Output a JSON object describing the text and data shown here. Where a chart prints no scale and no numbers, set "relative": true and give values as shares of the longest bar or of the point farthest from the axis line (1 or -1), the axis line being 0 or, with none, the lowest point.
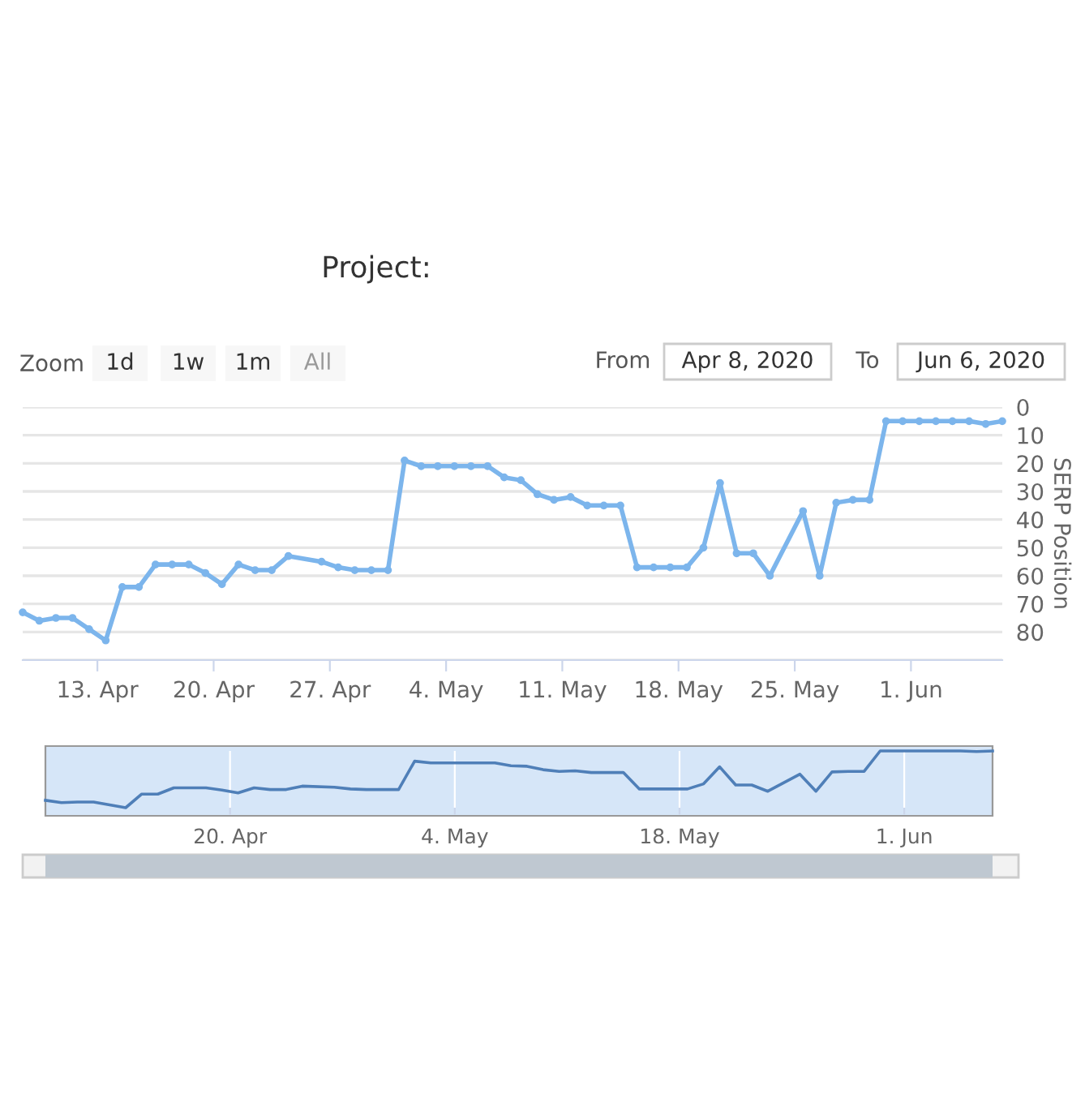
{
  "chart_data": [
    {
      "type": "line",
      "title": "Project:",
      "ylabel": "SERP Position",
      "annotations": [
        "Zoom",
        "1d",
        "1w",
        "1m",
        "All",
        "From",
        "Apr 8, 2020",
        "To",
        "Jun 6, 2020"
      ],
      "x": [
        "2020-04-08T12:00",
        "2020-04-09T12:00",
        "2020-04-10T12:00",
        "2020-04-11T12:00",
        "2020-04-12T12:00",
        "2020-04-13T12:00",
        "2020-04-14T12:00",
        "2020-04-15T12:00",
        "2020-04-16T12:00",
        "2020-04-17T12:00",
        "2020-04-18T12:00",
        "2020-04-19T12:00",
        "2020-04-20T12:00",
        "2020-04-21T12:00",
        "2020-04-22T12:00",
        "2020-04-23T12:00",
        "2020-04-24T12:00",
        "2020-04-26T12:00",
        "2020-04-27T12:00",
        "2020-04-28T12:00",
        "2020-04-29T12:00",
        "2020-04-30T12:00",
        "2020-05-01T12:00",
        "2020-05-02T12:00",
        "2020-05-03T12:00",
        "2020-05-04T12:00",
        "2020-05-05T12:00",
        "2020-05-06T12:00",
        "2020-05-07T12:00",
        "2020-05-08T12:00",
        "2020-05-09T12:00",
        "2020-05-10T12:00",
        "2020-05-11T12:00",
        "2020-05-12T12:00",
        "2020-05-13T12:00",
        "2020-05-14T12:00",
        "2020-05-15T12:00",
        "2020-05-16T12:00",
        "2020-05-17T12:00",
        "2020-05-18T12:00",
        "2020-05-19T12:00",
        "2020-05-20T12:00",
        "2020-05-21T12:00",
        "2020-05-22T12:00",
        "2020-05-23T12:00",
        "2020-05-25T12:00",
        "2020-05-26T12:00",
        "2020-05-27T12:00",
        "2020-05-28T12:00",
        "2020-05-29T12:00",
        "2020-05-30T12:00",
        "2020-05-31T12:00",
        "2020-06-01T12:00",
        "2020-06-02T12:00",
        "2020-06-03T12:00",
        "2020-06-04T12:00",
        "2020-06-05T12:00",
        "2020-06-06T12:00"
      ],
      "series": [
        {
          "color": "#7cb5ec",
          "values": [
            73,
            76,
            75,
            75,
            79,
            83,
            64,
            64,
            56,
            56,
            56,
            59,
            63,
            56,
            58,
            58,
            53,
            55,
            57,
            58,
            58,
            58,
            19,
            21,
            21,
            21,
            21,
            21,
            25,
            26,
            31,
            33,
            32,
            35,
            35,
            35,
            57,
            57,
            57,
            57,
            50,
            27,
            52,
            52,
            60,
            37,
            60,
            34,
            33,
            33,
            5,
            5,
            5,
            5,
            5,
            5,
            6,
            5
          ]
        }
      ],
      "xlim": [
        "2020-04-08T12:00",
        "2020-06-06T12:00"
      ],
      "xticks": [
        {
          "value": "2020-04-13",
          "label": "13. Apr"
        },
        {
          "value": "2020-04-20",
          "label": "20. Apr"
        },
        {
          "value": "2020-04-27",
          "label": "27. Apr"
        },
        {
          "value": "2020-05-04",
          "label": "4. May"
        },
        {
          "value": "2020-05-11",
          "label": "11. May"
        },
        {
          "value": "2020-05-18",
          "label": "18. May"
        },
        {
          "value": "2020-05-25",
          "label": "25. May"
        },
        {
          "value": "2020-06-01",
          "label": "1. Jun"
        }
      ],
      "ylim": [
        90,
        0
      ],
      "yticks": [
        0,
        10,
        20,
        30,
        40,
        50,
        60,
        70,
        80,
        {
          "value": 90,
          "label": null
        }
      ],
      "grid": "y",
      "marker": "circle",
      "line_style": "solid"
    },
    {
      "type": "line",
      "tick_labels": "x",
      "x": [
        "2020-04-08T12:00",
        "2020-04-09T12:00",
        "2020-04-10T12:00",
        "2020-04-11T12:00",
        "2020-04-12T12:00",
        "2020-04-13T12:00",
        "2020-04-14T12:00",
        "2020-04-15T12:00",
        "2020-04-16T12:00",
        "2020-04-17T12:00",
        "2020-04-18T12:00",
        "2020-04-19T12:00",
        "2020-04-20T12:00",
        "2020-04-21T12:00",
        "2020-04-22T12:00",
        "2020-04-23T12:00",
        "2020-04-24T12:00",
        "2020-04-26T12:00",
        "2020-04-27T12:00",
        "2020-04-28T12:00",
        "2020-04-29T12:00",
        "2020-04-30T12:00",
        "2020-05-01T12:00",
        "2020-05-02T12:00",
        "2020-05-03T12:00",
        "2020-05-04T12:00",
        "2020-05-05T12:00",
        "2020-05-06T12:00",
        "2020-05-07T12:00",
        "2020-05-08T12:00",
        "2020-05-09T12:00",
        "2020-05-10T12:00",
        "2020-05-11T12:00",
        "2020-05-12T12:00",
        "2020-05-13T12:00",
        "2020-05-14T12:00",
        "2020-05-15T12:00",
        "2020-05-16T12:00",
        "2020-05-17T12:00",
        "2020-05-18T12:00",
        "2020-05-19T12:00",
        "2020-05-20T12:00",
        "2020-05-21T12:00",
        "2020-05-22T12:00",
        "2020-05-23T12:00",
        "2020-05-25T12:00",
        "2020-05-26T12:00",
        "2020-05-27T12:00",
        "2020-05-28T12:00",
        "2020-05-29T12:00",
        "2020-05-30T12:00",
        "2020-05-31T12:00",
        "2020-06-01T12:00",
        "2020-06-02T12:00",
        "2020-06-03T12:00",
        "2020-06-04T12:00",
        "2020-06-05T12:00",
        "2020-06-06T12:00"
      ],
      "relative": true,
      "series": [
        {
          "color": "#4f7fb8",
          "values": [
            0.13,
            0.09,
            0.1,
            0.1,
            0.05,
            0,
            0.24,
            0.24,
            0.35,
            0.35,
            0.35,
            0.31,
            0.26,
            0.35,
            0.32,
            0.32,
            0.38,
            0.36,
            0.33,
            0.32,
            0.32,
            0.32,
            0.82,
            0.79,
            0.79,
            0.79,
            0.79,
            0.79,
            0.74,
            0.73,
            0.67,
            0.64,
            0.65,
            0.62,
            0.62,
            0.62,
            0.33,
            0.33,
            0.33,
            0.33,
            0.42,
            0.72,
            0.4,
            0.4,
            0.29,
            0.59,
            0.29,
            0.63,
            0.64,
            0.64,
            1,
            1,
            1,
            1,
            1,
            1,
            0.99,
            1
          ]
        }
      ],
      "xlim": [
        "2020-04-08T12:00",
        "2020-06-06T12:00"
      ],
      "xticks": [
        {
          "value": "2020-04-20",
          "label": "20. Apr"
        },
        {
          "value": "2020-05-04",
          "label": "4. May"
        },
        {
          "value": "2020-05-18",
          "label": "18. May"
        },
        {
          "value": "2020-06-01",
          "label": "1. Jun"
        }
      ],
      "grid": "x"
    }
  ]
}
